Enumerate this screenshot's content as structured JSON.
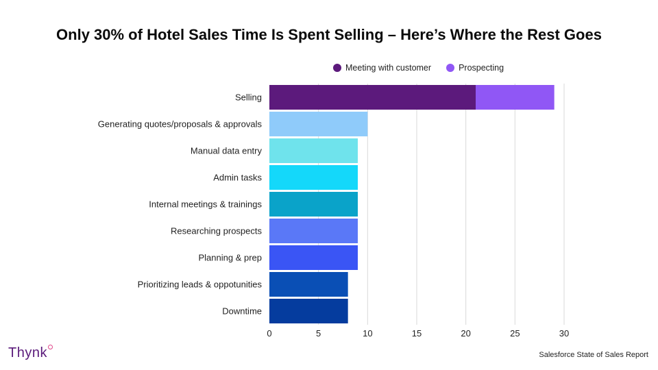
{
  "title": "Only 30% of Hotel Sales Time Is Spent Selling – Here’s Where the Rest Goes",
  "source": "Salesforce State of Sales Report",
  "brand": "Thynk",
  "colors": {
    "meeting": "#5c1a7c",
    "prospecting": "#9057f5"
  },
  "chart_data": {
    "type": "bar",
    "orientation": "horizontal",
    "stacked": true,
    "title": "Only 30% of Hotel Sales Time Is Spent Selling – Here’s Where the Rest Goes",
    "xlabel": "",
    "ylabel": "",
    "xlim": [
      0,
      30
    ],
    "xticks": [
      0,
      5,
      10,
      15,
      20,
      25,
      30
    ],
    "grid": "vertical",
    "legend": "top-center",
    "legend_entries": [
      "Meeting with customer",
      "Prospecting"
    ],
    "categories": [
      "Selling",
      "Generating quotes/proposals & approvals",
      "Manual data entry",
      "Admin tasks",
      "Internal meetings & trainings",
      "Researching prospects",
      "Planning & prep",
      "Prioritizing leads & oppotunities",
      "Downtime"
    ],
    "segments": [
      [
        {
          "value": 21,
          "color": "#5c1a7c"
        },
        {
          "value": 8,
          "color": "#9057f5"
        }
      ],
      [
        {
          "value": 10,
          "color": "#8fcbfa"
        }
      ],
      [
        {
          "value": 9,
          "color": "#6fe3ec"
        }
      ],
      [
        {
          "value": 9,
          "color": "#14d8fa"
        }
      ],
      [
        {
          "value": 9,
          "color": "#0aa3c9"
        }
      ],
      [
        {
          "value": 9,
          "color": "#5a78f7"
        }
      ],
      [
        {
          "value": 9,
          "color": "#3a55f5"
        }
      ],
      [
        {
          "value": 8,
          "color": "#0a4fb5"
        }
      ],
      [
        {
          "value": 8,
          "color": "#053c9e"
        }
      ]
    ]
  }
}
